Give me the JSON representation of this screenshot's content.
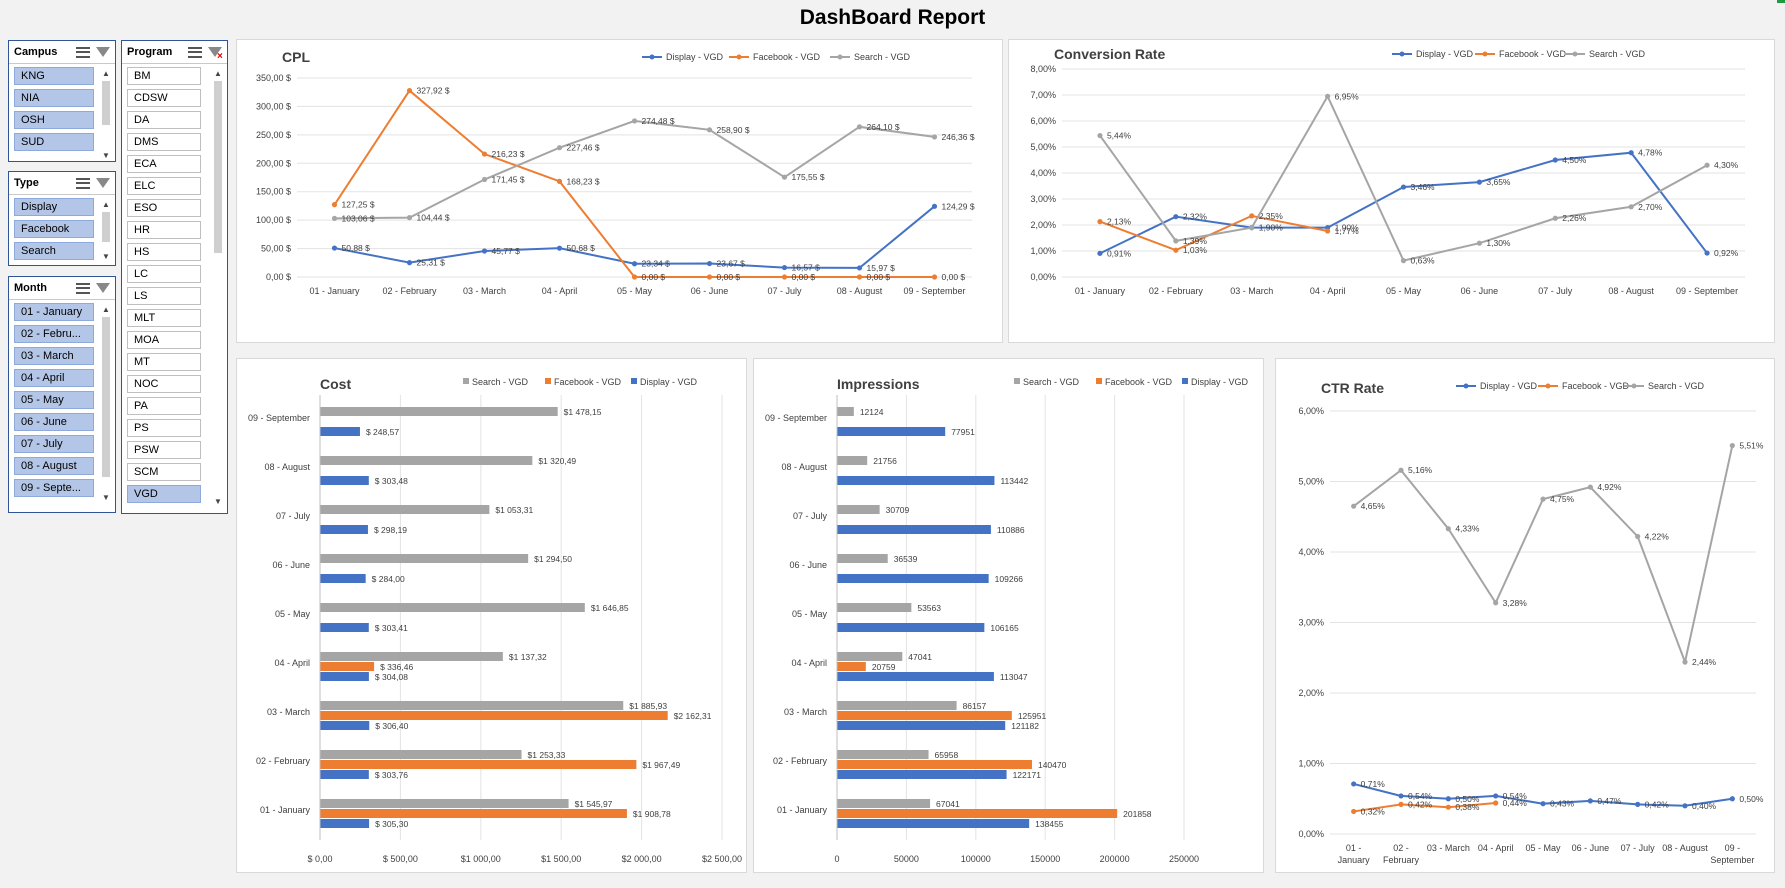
{
  "page": {
    "title": "DashBoard Report"
  },
  "slicers": {
    "campus": {
      "header": "Campus",
      "items": [
        {
          "label": "KNG",
          "selected": true
        },
        {
          "label": "NIA",
          "selected": true
        },
        {
          "label": "OSH",
          "selected": true
        },
        {
          "label": "SUD",
          "selected": true
        }
      ]
    },
    "type": {
      "header": "Type",
      "items": [
        {
          "label": "Display",
          "selected": true
        },
        {
          "label": "Facebook",
          "selected": true
        },
        {
          "label": "Search",
          "selected": true
        }
      ]
    },
    "month": {
      "header": "Month",
      "items": [
        {
          "label": "01 - January",
          "selected": true
        },
        {
          "label": "02 - Febru...",
          "selected": true
        },
        {
          "label": "03 - March",
          "selected": true
        },
        {
          "label": "04 - April",
          "selected": true
        },
        {
          "label": "05 - May",
          "selected": true
        },
        {
          "label": "06 - June",
          "selected": true
        },
        {
          "label": "07 - July",
          "selected": true
        },
        {
          "label": "08 - August",
          "selected": true
        },
        {
          "label": "09 - Septe...",
          "selected": true
        }
      ]
    },
    "program": {
      "header": "Program",
      "items": [
        {
          "label": "BM",
          "selected": false
        },
        {
          "label": "CDSW",
          "selected": false
        },
        {
          "label": "DA",
          "selected": false
        },
        {
          "label": "DMS",
          "selected": false
        },
        {
          "label": "ECA",
          "selected": false
        },
        {
          "label": "ELC",
          "selected": false
        },
        {
          "label": "ESO",
          "selected": false
        },
        {
          "label": "HR",
          "selected": false
        },
        {
          "label": "HS",
          "selected": false
        },
        {
          "label": "LC",
          "selected": false
        },
        {
          "label": "LS",
          "selected": false
        },
        {
          "label": "MLT",
          "selected": false
        },
        {
          "label": "MOA",
          "selected": false
        },
        {
          "label": "MT",
          "selected": false
        },
        {
          "label": "NOC",
          "selected": false
        },
        {
          "label": "PA",
          "selected": false
        },
        {
          "label": "PS",
          "selected": false
        },
        {
          "label": "PSW",
          "selected": false
        },
        {
          "label": "SCM",
          "selected": false
        },
        {
          "label": "VGD",
          "selected": true
        }
      ]
    }
  },
  "colors": {
    "display": "#4472c4",
    "facebook": "#ed7d31",
    "search": "#a5a5a5"
  },
  "chart_data": [
    {
      "id": "cpl",
      "type": "line",
      "title": "CPL",
      "categories": [
        "01 - January",
        "02 - February",
        "03 - March",
        "04 - April",
        "05 - May",
        "06 - June",
        "07 - July",
        "08 - August",
        "09 - September"
      ],
      "yticks": [
        "0,00 $",
        "50,00 $",
        "100,00 $",
        "150,00 $",
        "200,00 $",
        "250,00 $",
        "300,00 $",
        "350,00 $"
      ],
      "ylim": [
        0,
        350
      ],
      "series": [
        {
          "name": "Display - VGD",
          "key": "display",
          "values": [
            50.88,
            25.31,
            45.77,
            50.68,
            23.34,
            23.67,
            16.57,
            15.97,
            124.29
          ],
          "labels": [
            "50,88 $",
            "25,31 $",
            "45,77 $",
            "50,68 $",
            "23,34 $",
            "23,67 $",
            "16,57 $",
            "15,97 $",
            "124,29 $"
          ]
        },
        {
          "name": "Facebook - VGD",
          "key": "facebook",
          "values": [
            127.25,
            327.92,
            216.23,
            168.23,
            0,
            0,
            0,
            0,
            0
          ],
          "labels": [
            "127,25 $",
            "327,92 $",
            "216,23 $",
            "168,23 $",
            "0,00 $",
            "0,00 $",
            "0,00 $",
            "0,00 $",
            "0,00 $"
          ]
        },
        {
          "name": "Search - VGD",
          "key": "search",
          "values": [
            103.06,
            104.44,
            171.45,
            227.46,
            274.48,
            258.9,
            175.55,
            264.1,
            246.36
          ],
          "labels": [
            "103,06 $",
            "104,44 $",
            "171,45 $",
            "227,46 $",
            "274,48 $",
            "258,90 $",
            "175,55 $",
            "264,10 $",
            "246,36 $"
          ]
        }
      ]
    },
    {
      "id": "conversion",
      "type": "line",
      "title": "Conversion Rate",
      "categories": [
        "01 - January",
        "02 - February",
        "03 - March",
        "04 - April",
        "05 - May",
        "06 - June",
        "07 - July",
        "08 - August",
        "09 - September"
      ],
      "yticks": [
        "0,00%",
        "1,00%",
        "2,00%",
        "3,00%",
        "4,00%",
        "5,00%",
        "6,00%",
        "7,00%",
        "8,00%"
      ],
      "ylim": [
        0,
        8
      ],
      "series": [
        {
          "name": "Display - VGD",
          "key": "display",
          "values": [
            0.91,
            2.32,
            1.9,
            1.9,
            3.46,
            3.65,
            4.5,
            4.78,
            0.92
          ],
          "labels": [
            "0,91%",
            "2,32%",
            "1,90%",
            "1,90%",
            "3,46%",
            "3,65%",
            "4,50%",
            "4,78%",
            "0,92%"
          ]
        },
        {
          "name": "Facebook - VGD",
          "key": "facebook",
          "values": [
            2.13,
            1.03,
            2.35,
            1.77,
            null,
            null,
            null,
            null,
            null
          ],
          "labels": [
            "2,13%",
            "1,03%",
            "2,35%",
            "1,77%",
            "",
            "",
            "",
            "",
            ""
          ]
        },
        {
          "name": "Search - VGD",
          "key": "search",
          "values": [
            5.44,
            1.39,
            1.9,
            6.95,
            0.63,
            1.3,
            2.26,
            2.7,
            4.3
          ],
          "labels": [
            "5,44%",
            "1,39%",
            "",
            "6,95%",
            "0,63%",
            "1,30%",
            "2,26%",
            "2,70%",
            "4,30%"
          ]
        }
      ]
    },
    {
      "id": "cost",
      "type": "bar",
      "title": "Cost",
      "orientation": "horizontal",
      "categories": [
        "09 - September",
        "08 - August",
        "07 - July",
        "06 - June",
        "05 - May",
        "04 - April",
        "03 - March",
        "02 - February",
        "01 - January"
      ],
      "xticks": [
        "$ 0,00",
        "$ 500,00",
        "$1 000,00",
        "$1 500,00",
        "$2 000,00",
        "$2 500,00"
      ],
      "xlim": [
        0,
        2500
      ],
      "legend": [
        "Search - VGD",
        "Facebook - VGD",
        "Display - VGD"
      ],
      "series": [
        {
          "name": "Search - VGD",
          "key": "search",
          "values": [
            1478.15,
            1320.49,
            1053.31,
            1294.5,
            1646.85,
            1137.32,
            1885.93,
            1253.33,
            1545.97
          ],
          "labels": [
            "$1 478,15",
            "$1 320,49",
            "$1 053,31",
            "$1 294,50",
            "$1 646,85",
            "$1 137,32",
            "$1 885,93",
            "$1 253,33",
            "$1 545,97"
          ]
        },
        {
          "name": "Facebook - VGD",
          "key": "facebook",
          "values": [
            null,
            null,
            null,
            null,
            null,
            336.46,
            2162.31,
            1967.49,
            1908.78
          ],
          "labels": [
            "",
            "",
            "",
            "",
            "",
            "$ 336,46",
            "$2 162,31",
            "$1 967,49",
            "$1 908,78"
          ]
        },
        {
          "name": "Display - VGD",
          "key": "display",
          "values": [
            248.57,
            303.48,
            298.19,
            284.0,
            303.41,
            304.08,
            306.4,
            303.76,
            305.3
          ],
          "labels": [
            "$ 248,57",
            "$ 303,48",
            "$ 298,19",
            "$ 284,00",
            "$ 303,41",
            "$ 304,08",
            "$ 306,40",
            "$ 303,76",
            "$ 305,30"
          ]
        }
      ]
    },
    {
      "id": "impressions",
      "type": "bar",
      "title": "Impressions",
      "orientation": "horizontal",
      "categories": [
        "09 - September",
        "08 - August",
        "07 - July",
        "06 - June",
        "05 - May",
        "04 - April",
        "03 - March",
        "02 - February",
        "01 - January"
      ],
      "xticks": [
        "0",
        "50000",
        "100000",
        "150000",
        "200000",
        "250000"
      ],
      "xlim": [
        0,
        250000
      ],
      "legend": [
        "Search - VGD",
        "Facebook - VGD",
        "Display - VGD"
      ],
      "series": [
        {
          "name": "Search - VGD",
          "key": "search",
          "values": [
            12124,
            21756,
            30709,
            36539,
            53563,
            47041,
            86157,
            65958,
            67041
          ],
          "labels": [
            "12124",
            "21756",
            "30709",
            "36539",
            "53563",
            "47041",
            "86157",
            "65958",
            "67041"
          ]
        },
        {
          "name": "Facebook - VGD",
          "key": "facebook",
          "values": [
            null,
            null,
            null,
            null,
            null,
            20759,
            125951,
            140470,
            201858
          ],
          "labels": [
            "",
            "",
            "",
            "",
            "",
            "20759",
            "125951",
            "140470",
            "201858"
          ]
        },
        {
          "name": "Display - VGD",
          "key": "display",
          "values": [
            77951,
            113442,
            110886,
            109266,
            106165,
            113047,
            121182,
            122171,
            138455
          ],
          "labels": [
            "77951",
            "113442",
            "110886",
            "109266",
            "106165",
            "113047",
            "121182",
            "122171",
            "138455"
          ]
        }
      ]
    },
    {
      "id": "ctr",
      "type": "line",
      "title": "CTR Rate",
      "categories": [
        [
          "01 -",
          "January"
        ],
        [
          "02 -",
          "February"
        ],
        [
          "03 - March"
        ],
        [
          "04 - April"
        ],
        [
          "05 - May"
        ],
        [
          "06 - June"
        ],
        [
          "07 - July"
        ],
        [
          "08 - August"
        ],
        [
          "09 -",
          "September"
        ]
      ],
      "yticks": [
        "0,00%",
        "1,00%",
        "2,00%",
        "3,00%",
        "4,00%",
        "5,00%",
        "6,00%"
      ],
      "ylim": [
        0,
        6
      ],
      "series": [
        {
          "name": "Display - VGD",
          "key": "display",
          "values": [
            0.71,
            0.54,
            0.5,
            0.54,
            0.43,
            0.47,
            0.42,
            0.4,
            0.5
          ],
          "labels": [
            "0,71%",
            "0,54%",
            "0,50%",
            "0,54%",
            "0,43%",
            "0,47%",
            "0,42%",
            "0,40%",
            "0,50%"
          ]
        },
        {
          "name": "Facebook - VGD",
          "key": "facebook",
          "values": [
            0.32,
            0.42,
            0.38,
            0.44,
            null,
            null,
            null,
            null,
            null
          ],
          "labels": [
            "0,32%",
            "0,42%",
            "0,38%",
            "0,44%",
            "",
            "",
            "",
            "",
            ""
          ]
        },
        {
          "name": "Search - VGD",
          "key": "search",
          "values": [
            4.65,
            5.16,
            4.33,
            3.28,
            4.75,
            4.92,
            4.22,
            2.44,
            5.51
          ],
          "labels": [
            "4,65%",
            "5,16%",
            "4,33%",
            "3,28%",
            "4,75%",
            "4,92%",
            "4,22%",
            "2,44%",
            "5,51%"
          ]
        }
      ]
    }
  ]
}
